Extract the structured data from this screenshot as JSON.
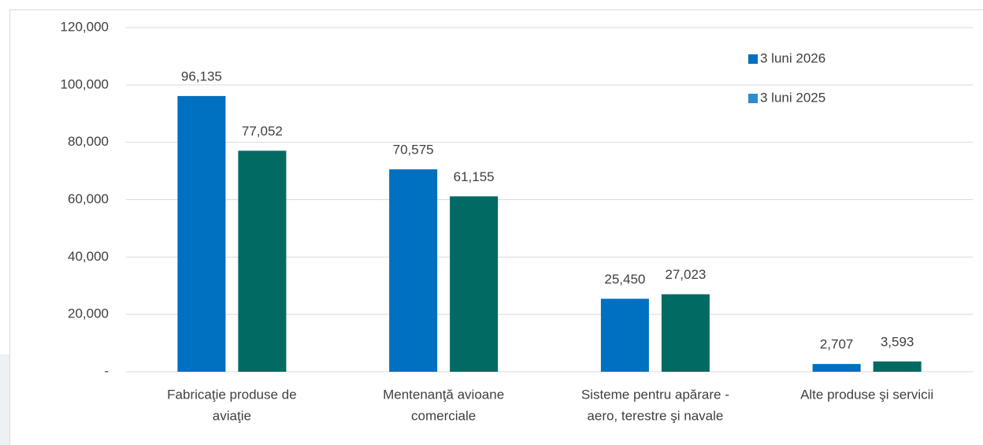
{
  "chart_data": {
    "type": "bar",
    "categories": [
      [
        "Fabricaţie produse de",
        "aviaţie"
      ],
      [
        "Mentenanţă avioane",
        "comerciale"
      ],
      [
        "Sisteme pentru apărare -",
        "aero, terestre şi navale"
      ],
      [
        "Alte produse şi servicii"
      ]
    ],
    "series": [
      {
        "name": "3 luni 2026",
        "color": "#0070c0",
        "legend_color": "#0070c0",
        "values": [
          96135,
          70575,
          25450,
          2707
        ],
        "value_labels": [
          "96,135",
          "70,575",
          "25,450",
          "2,707"
        ]
      },
      {
        "name": "3 luni 2025",
        "color": "#006a63",
        "legend_color": "#2e8bcc",
        "values": [
          77052,
          61155,
          27023,
          3593
        ],
        "value_labels": [
          "77,052",
          "61,155",
          "27,023",
          "3,593"
        ]
      }
    ],
    "ylim": [
      0,
      120000
    ],
    "yticks": [
      {
        "value": 0,
        "label": "-"
      },
      {
        "value": 20000,
        "label": "20,000"
      },
      {
        "value": 40000,
        "label": "40,000"
      },
      {
        "value": 60000,
        "label": "60,000"
      },
      {
        "value": 80000,
        "label": "80,000"
      },
      {
        "value": 100000,
        "label": "100,000"
      },
      {
        "value": 120000,
        "label": "120,000"
      }
    ],
    "grid": true,
    "legend": "upper right"
  }
}
